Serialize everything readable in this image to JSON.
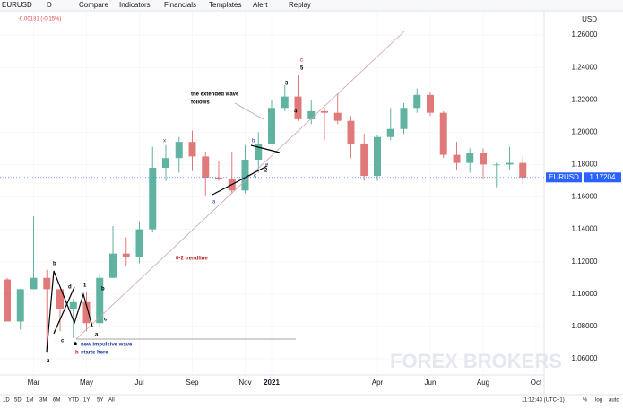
{
  "toolbar": {
    "symbol": "EURUSD",
    "interval": "D",
    "items": [
      "Compare",
      "Indicators",
      "Financials",
      "Templates",
      "Alert",
      "Replay"
    ],
    "change": "-0.00181 (-0.15%)"
  },
  "chart_data": {
    "type": "candlestick",
    "name": "EURUSD",
    "currency": "USD",
    "categories": [
      null,
      null,
      "Mar",
      null,
      null,
      null,
      "May",
      null,
      null,
      null,
      "Jul",
      null,
      null,
      null,
      "Sep",
      null,
      null,
      null,
      "Nov",
      null,
      "2021",
      null,
      null,
      null,
      null,
      null,
      null,
      null,
      "Apr",
      null,
      null,
      null,
      "Jun",
      null,
      null,
      null,
      "Aug",
      null,
      null,
      null,
      "Oct"
    ],
    "open": [
      1.109,
      1.083,
      1.103,
      1.11,
      1.103,
      1.091,
      1.095,
      1.082,
      1.11,
      1.125,
      1.123,
      1.14,
      1.178,
      1.184,
      1.194,
      1.185,
      1.172,
      1.171,
      1.164,
      1.183,
      1.193,
      1.215,
      1.222,
      1.208,
      1.213,
      1.212,
      1.207,
      1.193,
      1.173,
      1.197,
      1.202,
      1.215,
      1.223,
      1.212,
      1.186,
      1.181,
      1.187,
      1.18,
      1.18,
      1.181,
      null
    ],
    "high": [
      1.11,
      1.103,
      1.148,
      1.115,
      1.103,
      1.097,
      1.101,
      1.113,
      1.142,
      1.135,
      1.145,
      1.191,
      1.192,
      1.197,
      1.201,
      1.188,
      1.182,
      1.188,
      1.192,
      1.2,
      1.22,
      1.229,
      1.235,
      1.22,
      1.215,
      1.224,
      1.21,
      1.199,
      1.198,
      1.215,
      1.218,
      1.227,
      1.225,
      1.213,
      1.194,
      1.19,
      1.19,
      1.181,
      1.191,
      1.185,
      null
    ],
    "low": [
      1.083,
      1.078,
      1.103,
      1.064,
      1.077,
      1.073,
      1.077,
      1.08,
      1.11,
      1.117,
      1.119,
      1.138,
      1.17,
      1.175,
      1.176,
      1.161,
      1.17,
      1.162,
      1.162,
      1.175,
      1.193,
      1.213,
      1.207,
      1.205,
      1.195,
      1.205,
      1.184,
      1.17,
      1.17,
      1.195,
      1.199,
      1.212,
      1.21,
      1.184,
      1.177,
      1.175,
      1.171,
      1.166,
      1.177,
      1.168,
      null
    ],
    "close": [
      1.083,
      1.103,
      1.11,
      1.103,
      1.091,
      1.095,
      1.082,
      1.11,
      1.125,
      1.123,
      1.14,
      1.178,
      1.184,
      1.194,
      1.185,
      1.172,
      1.171,
      1.164,
      1.183,
      1.193,
      1.215,
      1.222,
      1.208,
      1.213,
      1.212,
      1.207,
      1.193,
      1.173,
      1.197,
      1.202,
      1.215,
      1.223,
      1.212,
      1.186,
      1.181,
      1.187,
      1.18,
      1.18,
      1.181,
      1.17204,
      null
    ],
    "up_color": "#5fb3a0",
    "down_color": "#e07a7a",
    "ylim": [
      1.05,
      1.275
    ],
    "yticks": [
      {
        "value": 1.06,
        "label": "1.06000"
      },
      {
        "value": 1.08,
        "label": "1.08000"
      },
      {
        "value": 1.1,
        "label": "1.10000"
      },
      {
        "value": 1.12,
        "label": "1.12000"
      },
      {
        "value": 1.14,
        "label": "1.14000"
      },
      {
        "value": 1.16,
        "label": "1.16000"
      },
      {
        "value": 1.18,
        "label": "1.18000"
      },
      {
        "value": 1.2,
        "label": "1.20000"
      },
      {
        "value": 1.22,
        "label": "1.22000"
      },
      {
        "value": 1.24,
        "label": "1.24000"
      },
      {
        "value": 1.26,
        "label": "1.26000"
      }
    ],
    "grid": true,
    "last_price": 1.17204,
    "last_price_color": "#2962ff",
    "annotations": [
      "the extended wave",
      "follows",
      "0-2 trendline",
      "new impulsive wave",
      "starts here",
      "b",
      "d",
      "1",
      "b",
      "c",
      "a",
      "c",
      "a",
      "x",
      "a",
      "c",
      "b",
      "e",
      "2",
      "3",
      "4",
      "5",
      "c",
      "b"
    ]
  },
  "footer": {
    "ranges": [
      "1D",
      "5D",
      "1M",
      "3M",
      "6M",
      "YTD",
      "1Y",
      "5Y",
      "All"
    ],
    "time": "11:12:43 (UTC+1)",
    "options": [
      "%",
      "log",
      "auto"
    ]
  },
  "watermark": "FOREX BROKERS"
}
